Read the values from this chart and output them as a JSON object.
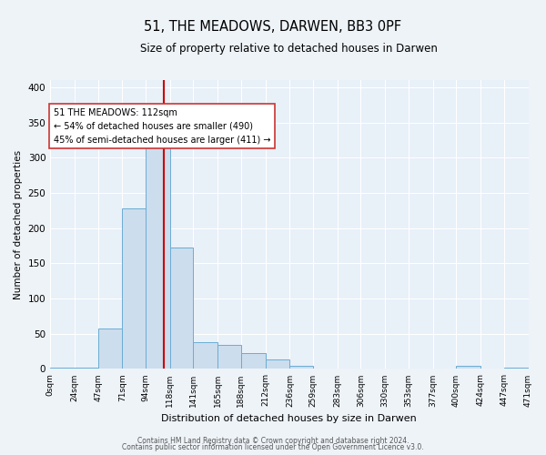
{
  "title": "51, THE MEADOWS, DARWEN, BB3 0PF",
  "subtitle": "Size of property relative to detached houses in Darwen",
  "xlabel": "Distribution of detached houses by size in Darwen",
  "ylabel": "Number of detached properties",
  "bar_color": "#ccdded",
  "bar_edge_color": "#6aadd5",
  "bg_color": "#e8f0f8",
  "fig_bg_color": "#eef3f8",
  "grid_color": "#ffffff",
  "bin_edges": [
    0,
    24,
    47,
    71,
    94,
    118,
    141,
    165,
    188,
    212,
    236,
    259,
    283,
    306,
    330,
    353,
    377,
    400,
    424,
    447,
    471
  ],
  "bin_labels": [
    "0sqm",
    "24sqm",
    "47sqm",
    "71sqm",
    "94sqm",
    "118sqm",
    "141sqm",
    "165sqm",
    "188sqm",
    "212sqm",
    "236sqm",
    "259sqm",
    "283sqm",
    "306sqm",
    "330sqm",
    "353sqm",
    "377sqm",
    "400sqm",
    "424sqm",
    "447sqm",
    "471sqm"
  ],
  "counts": [
    2,
    2,
    57,
    228,
    330,
    173,
    38,
    34,
    23,
    13,
    5,
    1,
    1,
    1,
    0,
    0,
    0,
    5,
    0,
    2
  ],
  "property_size": 112,
  "vline_color": "#cc0000",
  "annotation_line1": "51 THE MEADOWS: 112sqm",
  "annotation_line2": "← 54% of detached houses are smaller (490)",
  "annotation_line3": "45% of semi-detached houses are larger (411) →",
  "annotation_box_color": "#ffffff",
  "annotation_box_edge": "#cc3333",
  "ylim": [
    0,
    410
  ],
  "yticks": [
    0,
    50,
    100,
    150,
    200,
    250,
    300,
    350,
    400
  ],
  "title_fontsize": 10.5,
  "subtitle_fontsize": 8.5,
  "footer1": "Contains HM Land Registry data © Crown copyright and database right 2024.",
  "footer2": "Contains public sector information licensed under the Open Government Licence v3.0."
}
